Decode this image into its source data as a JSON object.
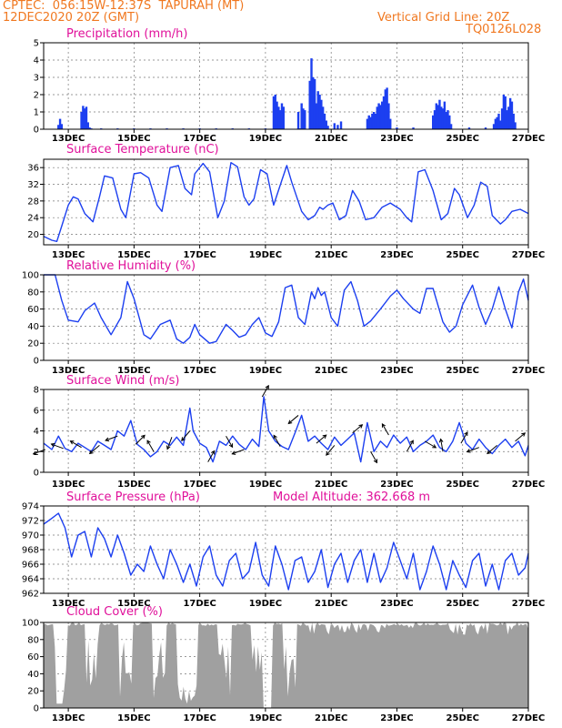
{
  "header": {
    "station": "CPTEC:  056:15W-12:37S  TAPURAH (MT)",
    "init_time": "12DEC2020 20Z (GMT)",
    "grid_note": "Vertical Grid Line: 20Z",
    "code": "TQ0126L028"
  },
  "model_altitude_label": "Model Altitude: 362.668 m",
  "colors": {
    "header": "#f07820",
    "title": "#e0109a",
    "line": "#1c3ff0",
    "bar": "#1c3ff0",
    "cloud": "#a0a0a0",
    "arrow": "#000000"
  },
  "x_axis": {
    "range": [
      12.25,
      27.0
    ],
    "ticks": [
      13,
      15,
      17,
      19,
      21,
      23,
      25,
      27
    ],
    "tick_labels": [
      "13DEC",
      "15DEC",
      "17DEC",
      "19DEC",
      "21DEC",
      "23DEC",
      "25DEC",
      "27DEC"
    ]
  },
  "chart_data": [
    {
      "id": "precip",
      "type": "bar",
      "title": "Precipitation (mm/h)",
      "ylim": [
        0,
        5
      ],
      "yticks": [
        0,
        1,
        2,
        3,
        4,
        5
      ],
      "x": [
        12.7,
        12.75,
        12.8,
        13.4,
        13.45,
        13.5,
        13.55,
        13.6,
        13.65,
        13.7,
        14.0,
        14.5,
        15.0,
        15.5,
        16.0,
        16.5,
        17.0,
        17.5,
        18.0,
        18.5,
        19.0,
        19.5,
        20.0,
        20.05,
        19.25,
        19.3,
        19.35,
        19.4,
        19.45,
        19.5,
        19.55,
        20.35,
        20.4,
        20.45,
        20.5,
        20.55,
        20.6,
        20.65,
        20.7,
        20.75,
        20.8,
        20.85,
        20.9,
        20.0,
        20.1,
        20.15,
        20.2,
        21.1,
        21.2,
        21.3,
        22.1,
        22.15,
        22.2,
        22.25,
        22.3,
        22.35,
        22.4,
        22.45,
        22.5,
        22.55,
        22.6,
        22.65,
        22.7,
        22.75,
        22.8,
        23.0,
        23.5,
        24.1,
        24.15,
        24.2,
        24.25,
        24.3,
        24.35,
        24.4,
        24.45,
        24.5,
        24.55,
        24.6,
        24.65,
        25.2,
        25.7,
        25.95,
        26.0,
        26.05,
        26.1,
        26.15,
        26.2,
        26.25,
        26.3,
        26.35,
        26.4,
        26.45,
        26.5,
        26.55,
        26.6
      ],
      "values": [
        0.25,
        0.6,
        0.3,
        1.0,
        1.35,
        1.2,
        1.3,
        0.4,
        0.1,
        0.05,
        0.05,
        0.05,
        0.05,
        0.05,
        0.05,
        0.05,
        0.05,
        0.05,
        0.05,
        0.05,
        0.05,
        0.05,
        0.05,
        0.05,
        1.9,
        2.0,
        1.6,
        1.3,
        1.1,
        1.5,
        1.3,
        2.8,
        4.1,
        3.0,
        2.9,
        1.5,
        2.2,
        2.0,
        1.7,
        1.3,
        0.9,
        0.5,
        0.2,
        1.0,
        1.5,
        1.2,
        1.1,
        0.35,
        0.25,
        0.45,
        0.6,
        0.8,
        0.7,
        0.9,
        1.0,
        0.9,
        1.3,
        1.5,
        1.4,
        1.6,
        1.9,
        2.3,
        2.4,
        1.5,
        0.6,
        0.1,
        0.1,
        0.8,
        1.1,
        1.5,
        1.4,
        1.7,
        1.3,
        1.2,
        1.6,
        1.0,
        1.1,
        0.8,
        0.3,
        0.1,
        0.1,
        0.3,
        0.6,
        0.7,
        0.9,
        0.5,
        1.2,
        2.0,
        1.9,
        1.1,
        1.3,
        1.8,
        1.6,
        0.9,
        0.4
      ]
    },
    {
      "id": "temp",
      "type": "line",
      "title": "Surface Temperature (nC)",
      "ylim": [
        17.5,
        38
      ],
      "yticks": [
        20,
        24,
        28,
        32,
        36
      ],
      "x": [
        12.25,
        12.5,
        12.65,
        12.8,
        13.0,
        13.15,
        13.3,
        13.5,
        13.75,
        13.95,
        14.1,
        14.35,
        14.6,
        14.75,
        15.0,
        15.2,
        15.45,
        15.7,
        15.85,
        16.1,
        16.35,
        16.55,
        16.75,
        16.85,
        17.1,
        17.3,
        17.55,
        17.75,
        17.95,
        18.15,
        18.35,
        18.5,
        18.65,
        18.85,
        19.05,
        19.25,
        19.5,
        19.65,
        19.8,
        20.1,
        20.3,
        20.5,
        20.65,
        20.75,
        20.9,
        21.05,
        21.25,
        21.45,
        21.65,
        21.85,
        22.05,
        22.3,
        22.55,
        22.8,
        23.1,
        23.3,
        23.45,
        23.65,
        23.85,
        24.1,
        24.35,
        24.55,
        24.75,
        24.9,
        25.15,
        25.35,
        25.55,
        25.75,
        25.9,
        26.15,
        26.3,
        26.5,
        26.75,
        27.0
      ],
      "values": [
        19.5,
        18.6,
        18.3,
        22.0,
        27.0,
        29.0,
        28.5,
        25.0,
        23.0,
        29.0,
        34.0,
        33.5,
        26.0,
        24.0,
        34.5,
        34.8,
        33.5,
        27.0,
        25.5,
        36.0,
        36.5,
        31.0,
        29.5,
        34.5,
        37.0,
        35.0,
        24.0,
        28.0,
        37.2,
        36.2,
        29.0,
        27.0,
        28.5,
        35.5,
        34.5,
        27.0,
        33.0,
        36.5,
        32.5,
        25.5,
        23.5,
        24.5,
        26.5,
        26.0,
        27.0,
        27.5,
        23.5,
        24.5,
        30.5,
        28.0,
        23.5,
        24.0,
        26.5,
        27.5,
        26.0,
        24.0,
        23.0,
        35.0,
        35.5,
        30.5,
        23.5,
        25.0,
        31.0,
        29.5,
        24.0,
        27.0,
        32.5,
        31.5,
        24.5,
        22.5,
        23.5,
        25.5,
        26.0,
        25.0
      ]
    },
    {
      "id": "rh",
      "type": "line",
      "title": "Relative Humidity (%)",
      "ylim": [
        0,
        100
      ],
      "yticks": [
        0,
        20,
        40,
        60,
        80,
        100
      ],
      "x": [
        12.25,
        12.6,
        12.8,
        13.0,
        13.3,
        13.5,
        13.8,
        14.0,
        14.3,
        14.6,
        14.8,
        15.0,
        15.3,
        15.5,
        15.8,
        16.1,
        16.3,
        16.5,
        16.7,
        16.85,
        17.0,
        17.3,
        17.5,
        17.8,
        18.0,
        18.2,
        18.4,
        18.6,
        18.8,
        19.0,
        19.2,
        19.4,
        19.6,
        19.8,
        20.0,
        20.2,
        20.4,
        20.5,
        20.6,
        20.7,
        20.8,
        21.0,
        21.2,
        21.4,
        21.6,
        21.8,
        22.0,
        22.2,
        22.5,
        22.8,
        23.0,
        23.2,
        23.5,
        23.7,
        23.9,
        24.1,
        24.4,
        24.6,
        24.8,
        25.0,
        25.3,
        25.5,
        25.7,
        25.9,
        26.1,
        26.3,
        26.5,
        26.7,
        26.85,
        27.0
      ],
      "values": [
        100,
        100,
        70,
        47,
        45,
        58,
        67,
        50,
        30,
        50,
        92,
        72,
        30,
        25,
        42,
        47,
        25,
        20,
        27,
        42,
        30,
        20,
        22,
        42,
        35,
        27,
        30,
        42,
        50,
        32,
        28,
        45,
        85,
        88,
        50,
        42,
        80,
        72,
        85,
        76,
        80,
        50,
        40,
        82,
        92,
        70,
        40,
        46,
        60,
        75,
        82,
        72,
        60,
        55,
        84,
        84,
        45,
        33,
        40,
        65,
        88,
        62,
        42,
        60,
        86,
        60,
        38,
        80,
        95,
        70
      ],
      "extra": {
        "x": [
          26.75,
          26.85,
          27.0
        ],
        "values": [
          95,
          72,
          90
        ]
      }
    },
    {
      "id": "wind",
      "type": "line",
      "title": "Surface Wind (m/s)",
      "ylim": [
        0,
        8
      ],
      "yticks": [
        0,
        2,
        4,
        6,
        8
      ],
      "x": [
        12.25,
        12.5,
        12.7,
        12.9,
        13.1,
        13.3,
        13.5,
        13.7,
        13.9,
        14.1,
        14.3,
        14.5,
        14.7,
        14.9,
        15.1,
        15.3,
        15.5,
        15.7,
        15.9,
        16.1,
        16.3,
        16.5,
        16.7,
        16.8,
        17.0,
        17.2,
        17.4,
        17.6,
        17.8,
        18.0,
        18.2,
        18.4,
        18.6,
        18.8,
        18.95,
        19.1,
        19.3,
        19.5,
        19.7,
        19.9,
        20.1,
        20.3,
        20.5,
        20.7,
        20.9,
        21.1,
        21.3,
        21.5,
        21.7,
        21.9,
        22.1,
        22.3,
        22.5,
        22.7,
        22.9,
        23.1,
        23.3,
        23.5,
        23.7,
        23.9,
        24.1,
        24.3,
        24.5,
        24.7,
        24.9,
        25.1,
        25.3,
        25.5,
        25.7,
        25.9,
        26.1,
        26.3,
        26.5,
        26.7,
        26.9,
        27.0
      ],
      "values": [
        2.8,
        2.2,
        3.5,
        2.3,
        2.0,
        2.8,
        2.4,
        2.0,
        3.0,
        2.6,
        2.2,
        4.0,
        3.5,
        5.0,
        2.7,
        2.2,
        1.5,
        2.0,
        3.0,
        2.6,
        3.4,
        2.6,
        6.2,
        4.0,
        2.8,
        2.4,
        1.0,
        3.0,
        2.6,
        3.5,
        2.7,
        2.2,
        3.2,
        2.5,
        7.3,
        4.0,
        3.0,
        2.5,
        2.2,
        3.8,
        5.5,
        3.0,
        3.5,
        2.8,
        2.2,
        3.4,
        2.6,
        3.2,
        3.8,
        1.0,
        4.8,
        2.0,
        3.0,
        2.4,
        3.6,
        2.8,
        3.4,
        2.0,
        2.6,
        3.0,
        3.6,
        2.4,
        2.0,
        3.0,
        4.8,
        2.8,
        2.2,
        3.2,
        2.4,
        1.8,
        2.6,
        3.2,
        2.4,
        3.0,
        1.6,
        2.6
      ]
    },
    {
      "id": "pressure",
      "type": "line",
      "title": "Surface Pressure (hPa)",
      "ylim": [
        962,
        974
      ],
      "yticks": [
        962,
        964,
        966,
        968,
        970,
        972,
        974
      ],
      "x": [
        12.25,
        12.5,
        12.7,
        12.9,
        13.1,
        13.3,
        13.5,
        13.7,
        13.9,
        14.1,
        14.3,
        14.5,
        14.7,
        14.9,
        15.1,
        15.3,
        15.5,
        15.7,
        15.9,
        16.1,
        16.3,
        16.5,
        16.7,
        16.9,
        17.1,
        17.3,
        17.5,
        17.7,
        17.9,
        18.1,
        18.3,
        18.5,
        18.7,
        18.9,
        19.1,
        19.3,
        19.5,
        19.7,
        19.9,
        20.1,
        20.3,
        20.5,
        20.7,
        20.9,
        21.1,
        21.3,
        21.5,
        21.7,
        21.9,
        22.1,
        22.3,
        22.5,
        22.7,
        22.9,
        23.1,
        23.3,
        23.5,
        23.7,
        23.9,
        24.1,
        24.3,
        24.5,
        24.7,
        24.9,
        25.1,
        25.3,
        25.5,
        25.7,
        25.9,
        26.1,
        26.3,
        26.5,
        26.7,
        26.9,
        27.0
      ],
      "values": [
        971.5,
        972.3,
        973.0,
        971.0,
        967.0,
        970.0,
        970.5,
        967.0,
        971.0,
        969.5,
        967.0,
        970.0,
        967.5,
        964.5,
        966.0,
        965.0,
        968.5,
        966.0,
        964.0,
        968.0,
        966.0,
        963.5,
        966.0,
        963.0,
        967.0,
        968.5,
        964.5,
        963.0,
        966.5,
        967.5,
        964.0,
        965.0,
        969.0,
        964.5,
        963.0,
        968.5,
        966.0,
        962.5,
        966.5,
        967.0,
        963.5,
        965.0,
        968.0,
        962.8,
        966.0,
        967.5,
        963.5,
        966.5,
        968.0,
        963.5,
        967.5,
        963.5,
        965.5,
        969.0,
        966.5,
        964.0,
        967.5,
        962.5,
        965.0,
        968.5,
        966.0,
        962.5,
        966.5,
        964.5,
        962.8,
        966.5,
        967.5,
        963.0,
        966.0,
        962.5,
        966.5,
        967.5,
        964.5,
        965.5,
        967.5
      ]
    },
    {
      "id": "cloud",
      "type": "area",
      "title": "Cloud Cover (%)",
      "ylim": [
        0,
        100
      ],
      "yticks": [
        0,
        20,
        40,
        60,
        80,
        100
      ]
    }
  ]
}
